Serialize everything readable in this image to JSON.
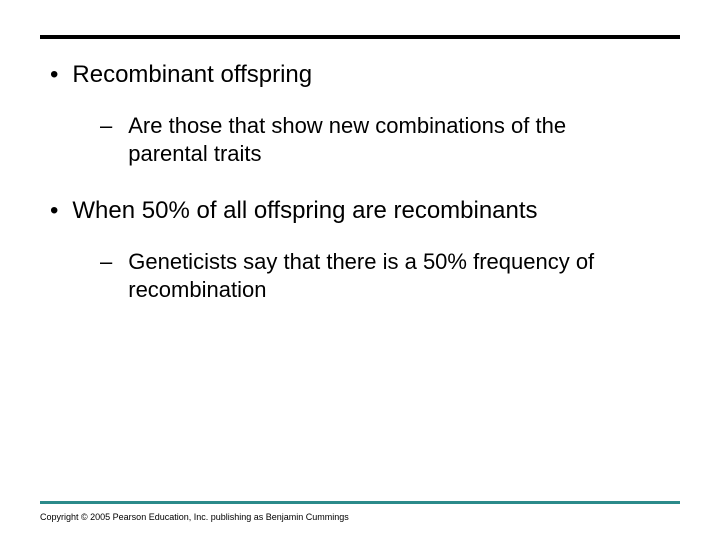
{
  "style": {
    "top_rule_color": "#000000",
    "bottom_rule_color": "#2b8a8a",
    "background_color": "#ffffff",
    "bullet_fontsize": 24,
    "sub_fontsize": 22,
    "copyright_fontsize": 9
  },
  "bullets": [
    {
      "marker": "•",
      "text": "Recombinant offspring",
      "subs": [
        {
          "marker": "–",
          "text": "Are those that show new combinations of the parental traits"
        }
      ]
    },
    {
      "marker": "•",
      "text": "When 50% of all offspring are recombinants",
      "subs": [
        {
          "marker": "–",
          "text": "Geneticists say that there is a 50% frequency of recombination"
        }
      ]
    }
  ],
  "copyright": "Copyright © 2005 Pearson Education, Inc. publishing as Benjamin Cummings"
}
